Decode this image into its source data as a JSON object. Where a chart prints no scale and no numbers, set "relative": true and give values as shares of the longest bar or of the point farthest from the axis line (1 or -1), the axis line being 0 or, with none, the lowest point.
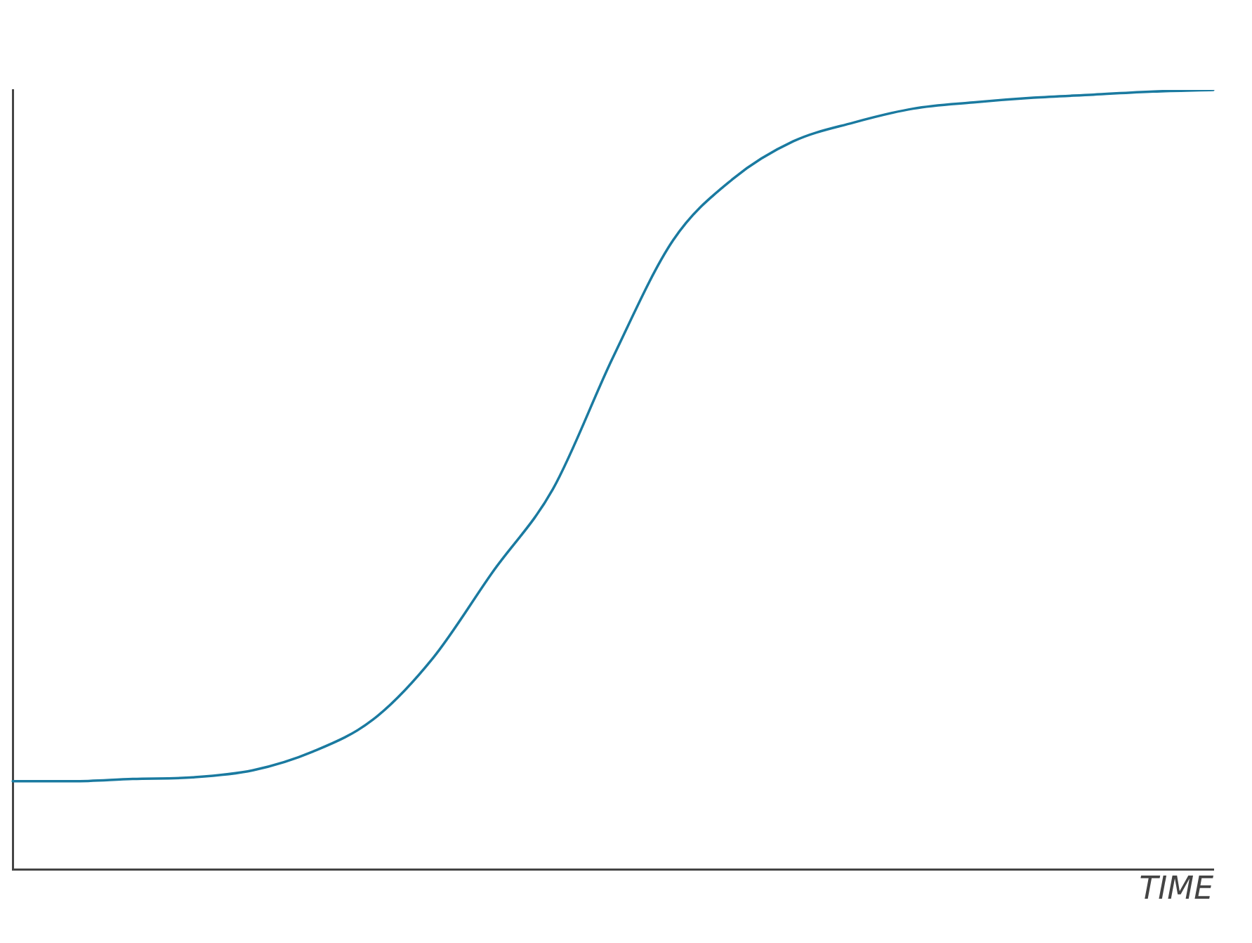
{
  "chart_data": {
    "type": "line",
    "xlabel": "TIME",
    "relative": true,
    "categories": [
      null,
      null,
      null,
      null,
      null,
      null,
      null,
      null,
      null,
      null,
      null,
      null,
      null,
      null,
      null,
      null,
      null,
      null,
      null,
      null,
      null
    ],
    "series": [
      {
        "color": "#1a7aa0",
        "values": [
          0.113,
          0.113,
          0.116,
          0.118,
          0.127,
          0.151,
          0.192,
          0.271,
          0.382,
          0.488,
          0.657,
          0.807,
          0.886,
          0.934,
          0.958,
          0.976,
          0.984,
          0.99,
          0.994,
          0.998,
          1
        ]
      }
    ],
    "marker": "none",
    "grid": false,
    "legend": false
  }
}
